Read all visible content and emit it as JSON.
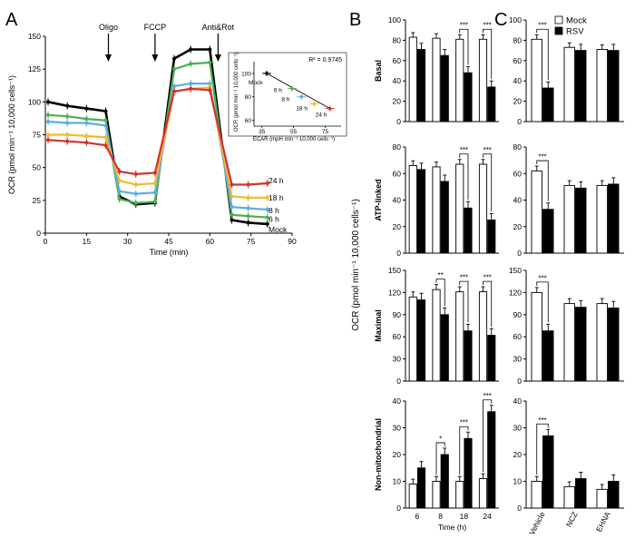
{
  "panels": {
    "a": "A",
    "b": "B",
    "c": "C"
  },
  "colors": {
    "mock": "#000000",
    "h6": "#4caf50",
    "h8": "#5dade2",
    "h18": "#f5b82e",
    "h24": "#d62f2f",
    "mock_bar": "#ffffff",
    "rsv_bar": "#000000"
  },
  "legend": {
    "mock": "Mock",
    "rsv": "RSV"
  },
  "chart_data": [
    {
      "type": "line",
      "panel": "A",
      "xlabel": "Time (min)",
      "ylabel": "OCR (pmol min⁻¹ 10,000 cells⁻¹)",
      "xlim": [
        0,
        90
      ],
      "ylim": [
        0,
        150
      ],
      "xticks": [
        0,
        15,
        30,
        45,
        60,
        75,
        90
      ],
      "yticks": [
        0,
        25,
        50,
        75,
        100,
        125,
        150
      ],
      "annotations": [
        {
          "text": "Oligo",
          "x": 23
        },
        {
          "text": "FCCP",
          "x": 40
        },
        {
          "text": "Anti&Rot",
          "x": 63
        }
      ],
      "x": [
        1,
        8,
        15,
        22,
        27,
        33,
        40,
        47,
        53,
        60,
        68,
        74,
        81
      ],
      "series": [
        {
          "name": "Mock",
          "color_key": "mock",
          "values": [
            100,
            97,
            95,
            93,
            28,
            22,
            23,
            133,
            140,
            140,
            10,
            8,
            7
          ]
        },
        {
          "name": "6 h",
          "color_key": "h6",
          "values": [
            90,
            89,
            87,
            86,
            26,
            23,
            24,
            125,
            129,
            130,
            14,
            13,
            12
          ]
        },
        {
          "name": "8 h",
          "color_key": "h8",
          "values": [
            85,
            84,
            84,
            82,
            32,
            30,
            31,
            112,
            114,
            114,
            20,
            19,
            18
          ]
        },
        {
          "name": "18 h",
          "color_key": "h18",
          "values": [
            75,
            75,
            74,
            73,
            40,
            37,
            38,
            108,
            110,
            111,
            28,
            27,
            27
          ]
        },
        {
          "name": "24 h",
          "color_key": "h24",
          "values": [
            71,
            70,
            69,
            67,
            47,
            45,
            46,
            108,
            110,
            109,
            37,
            37,
            38
          ]
        }
      ],
      "inset": {
        "xlabel": "ECAR (mpH min⁻¹ 10,000 cells⁻¹)",
        "ylabel": "OCR (pmol min⁻¹ 10,000 cells⁻¹)",
        "annotation": "R² = 0.9745",
        "xlim": [
          30,
          85
        ],
        "ylim": [
          55,
          110
        ],
        "xticks": [
          35,
          55,
          75
        ],
        "yticks": [
          60,
          80,
          100
        ],
        "points": [
          {
            "name": "Mock",
            "color_key": "mock",
            "x": 38,
            "y": 100
          },
          {
            "name": "6 h",
            "color_key": "h6",
            "x": 54,
            "y": 87
          },
          {
            "name": "8 h",
            "color_key": "h8",
            "x": 60,
            "y": 80
          },
          {
            "name": "18 h",
            "color_key": "h18",
            "x": 68,
            "y": 74
          },
          {
            "name": "24 h",
            "color_key": "h24",
            "x": 78,
            "y": 70
          }
        ]
      }
    },
    {
      "type": "bar",
      "panel": "B",
      "categories": [
        "6",
        "8",
        "18",
        "24"
      ],
      "xlabel": "Time (h)",
      "ylabel": "OCR (pmol min⁻¹ 10,000 cells⁻¹)",
      "rows": [
        {
          "label": "Basal",
          "ylim": [
            0,
            100
          ],
          "yticks": [
            0,
            20,
            40,
            60,
            80,
            100
          ],
          "mock": [
            83,
            82,
            81,
            81
          ],
          "rsv": [
            71,
            65,
            48,
            34
          ],
          "sig": [
            "",
            "",
            "***",
            "***"
          ]
        },
        {
          "label": "ATP-linked",
          "ylim": [
            0,
            80
          ],
          "yticks": [
            0,
            20,
            40,
            60,
            80
          ],
          "mock": [
            66,
            65,
            67,
            67
          ],
          "rsv": [
            63,
            54,
            34,
            25
          ],
          "sig": [
            "",
            "",
            "***",
            "***"
          ]
        },
        {
          "label": "Maximal",
          "ylim": [
            0,
            150
          ],
          "yticks": [
            0,
            30,
            60,
            90,
            120,
            150
          ],
          "mock": [
            114,
            124,
            121,
            121
          ],
          "rsv": [
            110,
            90,
            68,
            62
          ],
          "sig": [
            "",
            "**",
            "***",
            "***"
          ]
        },
        {
          "label": "Non-mitochondrial",
          "ylim": [
            0,
            40
          ],
          "yticks": [
            0,
            10,
            20,
            30,
            40
          ],
          "mock": [
            9,
            10,
            10,
            11
          ],
          "rsv": [
            15,
            20,
            26,
            36
          ],
          "sig": [
            "",
            "*",
            "***",
            "***"
          ]
        }
      ]
    },
    {
      "type": "bar",
      "panel": "C",
      "categories": [
        "Vehicle",
        "NCZ",
        "EHNA"
      ],
      "series": [
        {
          "name": "Mock"
        },
        {
          "name": "RSV"
        }
      ],
      "rows": [
        {
          "ylim": [
            0,
            100
          ],
          "yticks": [
            0,
            20,
            40,
            60,
            80,
            100
          ],
          "mock": [
            81,
            73,
            71
          ],
          "rsv": [
            33,
            70,
            70
          ],
          "sig": [
            "***",
            "",
            ""
          ]
        },
        {
          "ylim": [
            0,
            80
          ],
          "yticks": [
            0,
            20,
            40,
            60,
            80
          ],
          "mock": [
            62,
            51,
            51
          ],
          "rsv": [
            33,
            49,
            52
          ],
          "sig": [
            "***",
            "",
            ""
          ]
        },
        {
          "ylim": [
            0,
            150
          ],
          "yticks": [
            0,
            30,
            60,
            90,
            120,
            150
          ],
          "mock": [
            120,
            105,
            105
          ],
          "rsv": [
            68,
            100,
            99
          ],
          "sig": [
            "***",
            "",
            ""
          ]
        },
        {
          "ylim": [
            0,
            40
          ],
          "yticks": [
            0,
            10,
            20,
            30,
            40
          ],
          "mock": [
            10,
            8,
            7
          ],
          "rsv": [
            27,
            11,
            10
          ],
          "sig": [
            "***",
            "",
            ""
          ]
        }
      ]
    }
  ]
}
